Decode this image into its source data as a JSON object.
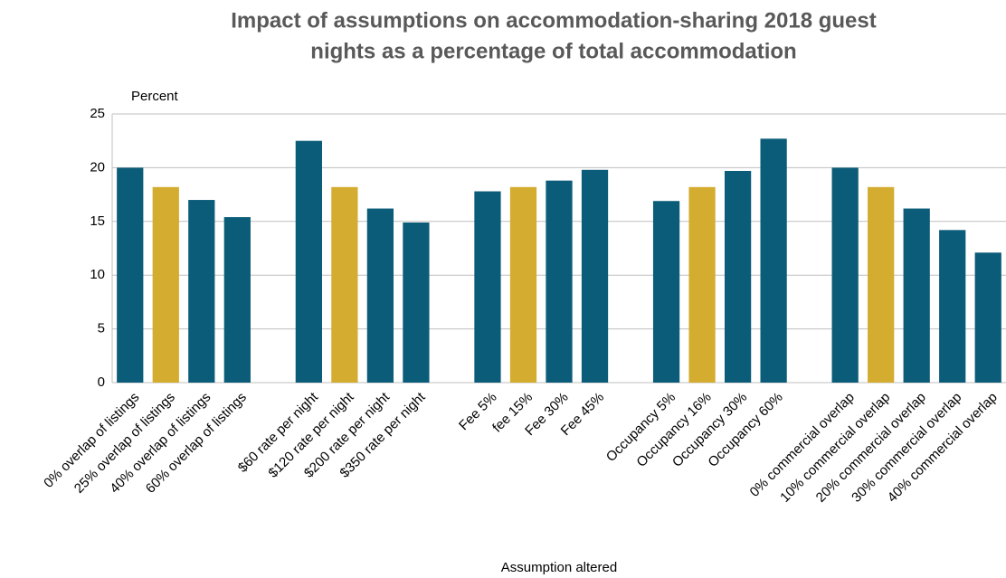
{
  "chart_data": {
    "type": "bar",
    "title": [
      "Impact of assumptions on accommodation-sharing 2018 guest",
      "nights as a percentage of total accommodation"
    ],
    "y_label": "Percent",
    "x_label": "Assumption altered",
    "categories": [
      "0% overlap of listings",
      "25% overlap of listings",
      "40% overlap of listings",
      "60% overlap of listings",
      null,
      "$60 rate per night",
      "$120 rate per night",
      "$200 rate per night",
      "$350 rate per night",
      null,
      "Fee 5%",
      "fee 15%",
      "Fee 30%",
      "Fee 45%",
      null,
      "Occupancy 5%",
      "Occupancy 16%",
      "Occupancy 30%",
      "Occupancy 60%",
      null,
      "0% commercial overlap",
      "10% commercial overlap",
      "20% commercial overlap",
      "30% commercial overlap",
      "40% commercial overlap"
    ],
    "values": [
      20.0,
      18.2,
      17.0,
      15.4,
      null,
      22.5,
      18.2,
      16.2,
      14.9,
      null,
      17.8,
      18.2,
      18.8,
      19.8,
      null,
      16.9,
      18.2,
      19.7,
      22.7,
      null,
      20.0,
      18.2,
      16.2,
      14.2,
      12.1
    ],
    "colors": [
      "#0b5c78",
      "#d4ac2f",
      "#0b5c78",
      "#0b5c78",
      null,
      "#0b5c78",
      "#d4ac2f",
      "#0b5c78",
      "#0b5c78",
      null,
      "#0b5c78",
      "#d4ac2f",
      "#0b5c78",
      "#0b5c78",
      null,
      "#0b5c78",
      "#d4ac2f",
      "#0b5c78",
      "#0b5c78",
      null,
      "#0b5c78",
      "#d4ac2f",
      "#0b5c78",
      "#0b5c78",
      "#0b5c78"
    ],
    "ylim": [
      0,
      25
    ],
    "yticks": [
      0,
      5,
      10,
      15,
      20,
      25
    ],
    "grid": true
  }
}
